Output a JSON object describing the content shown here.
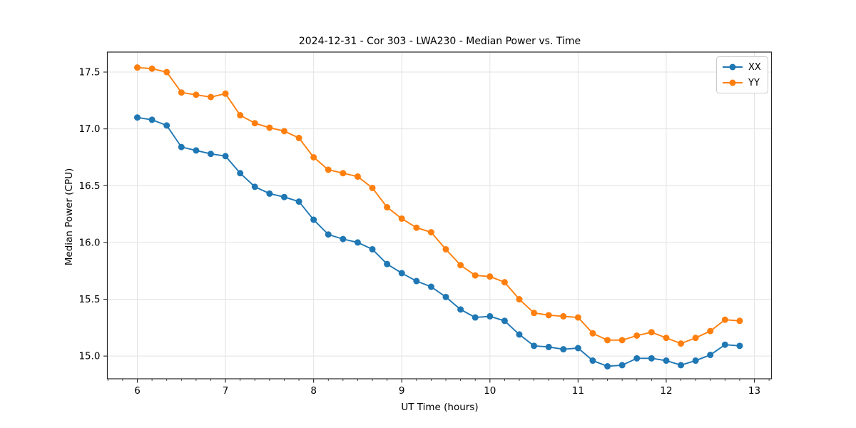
{
  "figure": {
    "background": "#ffffff"
  },
  "chart_data": {
    "type": "line",
    "title": "2024-12-31 - Cor 303 - LWA230 - Median Power vs. Time",
    "xlabel": "UT Time (hours)",
    "ylabel": "Median Power (CPU)",
    "x": [
      6.0,
      6.1667,
      6.3333,
      6.5,
      6.6667,
      6.8333,
      7.0,
      7.1667,
      7.3333,
      7.5,
      7.6667,
      7.8333,
      8.0,
      8.1667,
      8.3333,
      8.5,
      8.6667,
      8.8333,
      9.0,
      9.1667,
      9.3333,
      9.5,
      9.6667,
      9.8333,
      10.0,
      10.1667,
      10.3333,
      10.5,
      10.6667,
      10.8333,
      11.0,
      11.1667,
      11.3333,
      11.5,
      11.6667,
      11.8333,
      12.0,
      12.1667,
      12.3333,
      12.5,
      12.6667,
      12.8333
    ],
    "series": [
      {
        "name": "XX",
        "color": "#1f77b4",
        "values": [
          17.1,
          17.08,
          17.03,
          16.84,
          16.81,
          16.78,
          16.76,
          16.61,
          16.49,
          16.43,
          16.4,
          16.36,
          16.2,
          16.07,
          16.03,
          16.0,
          15.94,
          15.81,
          15.73,
          15.66,
          15.61,
          15.52,
          15.41,
          15.34,
          15.35,
          15.31,
          15.19,
          15.09,
          15.08,
          15.06,
          15.07,
          14.96,
          14.91,
          14.92,
          14.98,
          14.98,
          14.96,
          14.92,
          14.96,
          15.01,
          15.1,
          15.09
        ]
      },
      {
        "name": "YY",
        "color": "#ff7f0e",
        "values": [
          17.54,
          17.53,
          17.5,
          17.32,
          17.3,
          17.28,
          17.31,
          17.12,
          17.05,
          17.01,
          16.98,
          16.92,
          16.75,
          16.64,
          16.61,
          16.58,
          16.48,
          16.31,
          16.21,
          16.13,
          16.09,
          15.94,
          15.8,
          15.71,
          15.7,
          15.65,
          15.5,
          15.38,
          15.36,
          15.35,
          15.34,
          15.2,
          15.14,
          15.14,
          15.18,
          15.21,
          15.16,
          15.11,
          15.16,
          15.22,
          15.32,
          15.31
        ]
      }
    ],
    "xticks": [
      6,
      7,
      8,
      9,
      10,
      11,
      12,
      13
    ],
    "yticks": [
      15.0,
      15.5,
      16.0,
      16.5,
      17.0,
      17.5
    ],
    "xlim": [
      5.66,
      13.194
    ],
    "ylim": [
      14.8,
      17.676
    ],
    "x_minor_step": 0.1666667,
    "grid": true,
    "marker": "circle",
    "marker_radius": 4.5,
    "line_width": 1.9,
    "legend_position": "upper right",
    "colors": {
      "grid": "#e3e3e3",
      "spine": "#262626",
      "tick": "#262626",
      "text": "#000000"
    }
  }
}
